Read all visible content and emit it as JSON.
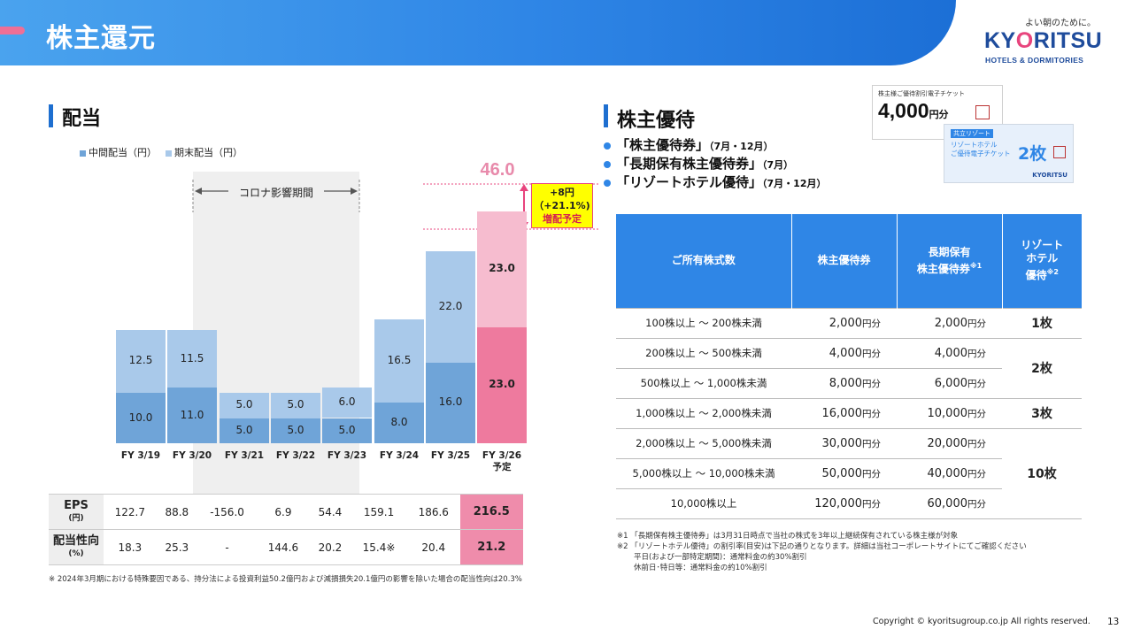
{
  "header": {
    "title": "株主還元"
  },
  "logo": {
    "tagline": "よい朝のために。",
    "main_left": "KY",
    "main_mid": "O",
    "main_right": "RITSU",
    "sub": "HOTELS & DORMITORIES"
  },
  "dividend": {
    "section_title": "配当",
    "legend": {
      "interim": "中間配当（円）",
      "final": "期末配当（円）"
    },
    "corona_label": "コロナ影響期間",
    "total_label": "46.0",
    "callout": {
      "line1": "+8円",
      "line2": "（+21.1%)",
      "line3": "増配予定"
    }
  },
  "chart_data": {
    "type": "bar",
    "stacked": true,
    "title": "配当",
    "categories": [
      "FY 3/19",
      "FY 3/20",
      "FY 3/21",
      "FY 3/22",
      "FY 3/23",
      "FY 3/24",
      "FY 3/25",
      "FY 3/26\n予定"
    ],
    "category_lines": [
      [
        "FY 3/19"
      ],
      [
        "FY 3/20"
      ],
      [
        "FY 3/21"
      ],
      [
        "FY 3/22"
      ],
      [
        "FY 3/23"
      ],
      [
        "FY 3/24"
      ],
      [
        "FY 3/25"
      ],
      [
        "FY 3/26",
        "予定"
      ]
    ],
    "series": [
      {
        "name": "中間配当（円）",
        "values": [
          10.0,
          11.0,
          5.0,
          5.0,
          5.0,
          8.0,
          16.0,
          23.0
        ],
        "labels": [
          "10.0",
          "11.0",
          "5.0",
          "5.0",
          "5.0",
          "8.0",
          "16.0",
          "23.0"
        ],
        "color": "#6fa4d8",
        "highlight_color": "#ee7a9e"
      },
      {
        "name": "期末配当（円）",
        "values": [
          12.5,
          11.5,
          5.0,
          5.0,
          6.0,
          16.5,
          22.0,
          23.0
        ],
        "labels": [
          "12.5",
          "11.5",
          "5.0",
          "5.0",
          "6.0",
          "16.5",
          "22.0",
          "23.0"
        ],
        "color": "#a9c9ea",
        "highlight_color": "#f6bccf"
      }
    ],
    "highlight_index": 7,
    "shaded_range": [
      "FY 3/21",
      "FY 3/23"
    ],
    "ylim": [
      0,
      48
    ],
    "xlabel": "",
    "ylabel": ""
  },
  "eps_table": {
    "rows": [
      {
        "label": "EPS",
        "unit": "(円)",
        "values": [
          "122.7",
          "88.8",
          "-156.0",
          "6.9",
          "54.4",
          "159.1",
          "186.6",
          "216.5"
        ]
      },
      {
        "label": "配当性向",
        "unit": "(%)",
        "values": [
          "18.3",
          "25.3",
          "-",
          "144.6",
          "20.2",
          "15.4※",
          "20.4",
          "21.2"
        ]
      }
    ],
    "footnote": "※ 2024年3月期における特殊要因である、持分法による投資利益50.2億円および減損損失20.1億円の影響を除いた場合の配当性向は20.3%"
  },
  "benefits": {
    "section_title": "株主優待",
    "bullets": [
      {
        "text": "「株主優待券」",
        "period": "（7月・12月）"
      },
      {
        "text": "「長期保有株主優待券」",
        "period": "（7月）"
      },
      {
        "text": "「リゾートホテル優待」",
        "period": "（7月・12月）"
      }
    ],
    "ticket1": {
      "title": "株主様ご優待割引電子チケット",
      "value": "4,000",
      "unit": "円分"
    },
    "ticket2": {
      "badge": "共立リゾート",
      "title1": "リゾートホテル",
      "title2": "ご優待電子チケット",
      "value": "2枚",
      "logo": "KYORITSU"
    },
    "table": {
      "headers": {
        "shares": "ご所有株式数",
        "coupon": "株主優待券",
        "long_term_1": "長期保有",
        "long_term_2": "株主優待券",
        "long_term_note": "※1",
        "resort_1": "リゾート",
        "resort_2": "ホテル",
        "resort_3": "優待",
        "resort_note": "※2"
      },
      "rows": [
        {
          "range": "100株以上 ～ 200株未満",
          "coupon": "2,000",
          "long": "2,000"
        },
        {
          "range": "200株以上 ～ 500株未満",
          "coupon": "4,000",
          "long": "4,000"
        },
        {
          "range": "500株以上 ～ 1,000株未満",
          "coupon": "8,000",
          "long": "6,000"
        },
        {
          "range": "1,000株以上 ～ 2,000株未満",
          "coupon": "16,000",
          "long": "10,000"
        },
        {
          "range": "2,000株以上 ～ 5,000株未満",
          "coupon": "30,000",
          "long": "20,000"
        },
        {
          "range": "5,000株以上 ～ 10,000株未満",
          "coupon": "50,000",
          "long": "40,000"
        },
        {
          "range": "10,000株以上",
          "coupon": "120,000",
          "long": "60,000"
        }
      ],
      "unit": "円分",
      "resort_values": [
        "1枚",
        "2枚",
        "3枚",
        "10枚"
      ]
    },
    "notes": [
      "※1 「長期保有株主優待券」は3月31日時点で当社の株式を3年以上継続保有されている株主様が対象",
      "※2 「リゾートホテル優待」の割引率(目安)は下記の通りとなります。詳細は当社コーポレートサイトにてご確認ください",
      "平日(および一部特定期間)：通常料金の約30%割引",
      "休前日･特日等：通常料金の約10%割引"
    ]
  },
  "footer": {
    "copyright": "Copyright © kyoritsugroup.co.jp All rights reserved.",
    "page": "13"
  }
}
